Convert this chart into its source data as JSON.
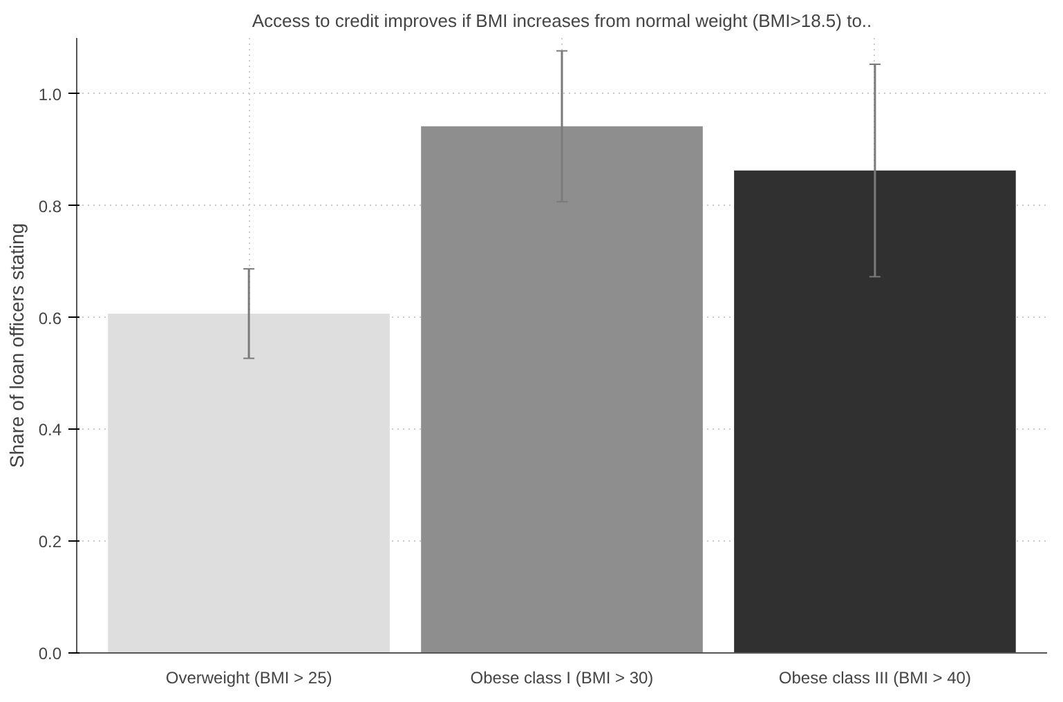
{
  "chart_data": {
    "type": "bar",
    "title": "Access to credit improves if BMI increases from normal weight (BMI>18.5) to..",
    "ylabel": "Share of loan officers stating",
    "categories": [
      "Overweight (BMI > 25)",
      "Obese class I (BMI > 30)",
      "Obese class III (BMI > 40)"
    ],
    "values": [
      0.607,
      0.942,
      0.863
    ],
    "colors": [
      "#dedede",
      "#8e8e8e",
      "#303030"
    ],
    "errors": [
      0.08,
      0.135,
      0.19
    ],
    "ylim": [
      0,
      1.1
    ],
    "yticks": [
      {
        "value": 0,
        "label": "0.0"
      },
      0.2,
      0.4,
      0.6,
      0.8,
      {
        "value": 1,
        "label": "1.0"
      }
    ],
    "grid": true
  }
}
